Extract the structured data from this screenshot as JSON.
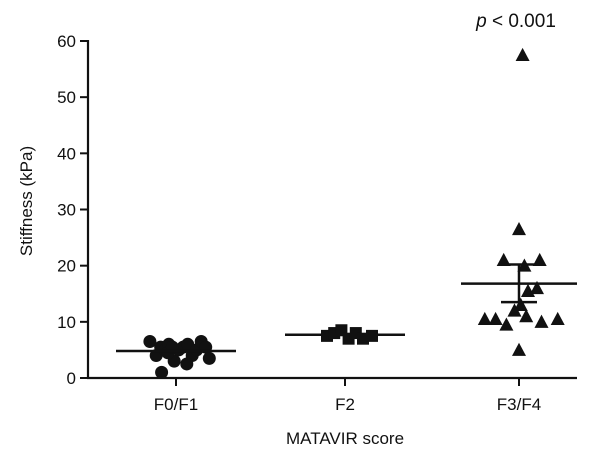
{
  "chart_data": {
    "type": "scatter",
    "subtype": "dot-plot",
    "xlabel": "MATAVIR score",
    "ylabel": "Stiffness (kPa)",
    "ylim": [
      0,
      60
    ],
    "yticks": [
      0,
      10,
      20,
      30,
      40,
      50,
      60
    ],
    "categories": [
      "F0/F1",
      "F2",
      "F3/F4"
    ],
    "annotation": {
      "italic": "p",
      "rest": " < 0.001"
    },
    "color": "#111111",
    "grid": false,
    "legend": "none",
    "series": [
      {
        "category": "F0/F1",
        "marker": "circle",
        "points": [
          {
            "dx": -0.29,
            "y": 6.5
          },
          {
            "dx": -0.22,
            "y": 4.0
          },
          {
            "dx": -0.17,
            "y": 5.5
          },
          {
            "dx": -0.12,
            "y": 5.0
          },
          {
            "dx": -0.08,
            "y": 6.0
          },
          {
            "dx": -0.02,
            "y": 3.0
          },
          {
            "dx": 0.03,
            "y": 5.0
          },
          {
            "dx": 0.08,
            "y": 5.5
          },
          {
            "dx": -0.09,
            "y": 4.5
          },
          {
            "dx": -0.04,
            "y": 5.5
          },
          {
            "dx": 0.13,
            "y": 6.0
          },
          {
            "dx": 0.18,
            "y": 4.0
          },
          {
            "dx": 0.23,
            "y": 5.0
          },
          {
            "dx": 0.28,
            "y": 6.5
          },
          {
            "dx": 0.33,
            "y": 5.5
          },
          {
            "dx": 0.37,
            "y": 3.5
          },
          {
            "dx": -0.16,
            "y": 1.0
          },
          {
            "dx": 0.12,
            "y": 2.5
          }
        ],
        "mean": 4.8
      },
      {
        "category": "F2",
        "marker": "square",
        "points": [
          {
            "dx": -0.2,
            "y": 7.5
          },
          {
            "dx": -0.12,
            "y": 8.0
          },
          {
            "dx": -0.04,
            "y": 8.5
          },
          {
            "dx": 0.04,
            "y": 7.0
          },
          {
            "dx": 0.12,
            "y": 8.0
          },
          {
            "dx": 0.2,
            "y": 7.0
          },
          {
            "dx": 0.3,
            "y": 7.5
          }
        ],
        "mean": 7.7
      },
      {
        "category": "F3/F4",
        "marker": "triangle",
        "points": [
          {
            "dx": 0.04,
            "y": 57.5
          },
          {
            "dx": 0.0,
            "y": 26.5
          },
          {
            "dx": -0.17,
            "y": 21.0
          },
          {
            "dx": 0.23,
            "y": 21.0
          },
          {
            "dx": 0.06,
            "y": 20.0
          },
          {
            "dx": 0.2,
            "y": 16.0
          },
          {
            "dx": 0.1,
            "y": 15.5
          },
          {
            "dx": 0.02,
            "y": 13.0
          },
          {
            "dx": -0.38,
            "y": 10.5
          },
          {
            "dx": -0.26,
            "y": 10.5
          },
          {
            "dx": -0.14,
            "y": 9.5
          },
          {
            "dx": -0.05,
            "y": 12.0
          },
          {
            "dx": 0.08,
            "y": 11.0
          },
          {
            "dx": 0.25,
            "y": 10.0
          },
          {
            "dx": 0.43,
            "y": 10.5
          },
          {
            "dx": 0.0,
            "y": 5.0
          }
        ],
        "mean": 16.8,
        "sem_low": 13.5,
        "sem_high": 20.2
      }
    ]
  }
}
